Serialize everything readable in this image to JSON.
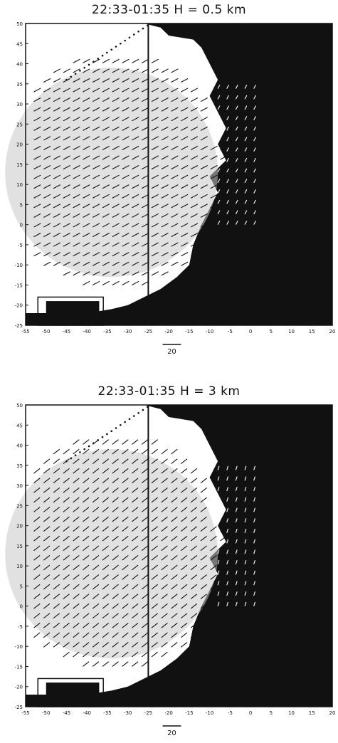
{
  "panels": [
    {
      "title": "22:33-01:35   H = 0.5 km",
      "scale_label": "20",
      "x_ticks": [
        "-55",
        "-50",
        "-45",
        "-40",
        "-35",
        "-30",
        "-25",
        "-20",
        "-15",
        "-10",
        "-5",
        "0",
        "5",
        "10",
        "15",
        "20"
      ],
      "y_ticks": [
        "50",
        "45",
        "40",
        "35",
        "30",
        "25",
        "20",
        "15",
        "10",
        "5",
        "0",
        "-5",
        "-10",
        "-15",
        "-20",
        "-25"
      ],
      "vertical_line_x": -25,
      "wind_angle_deg": 28
    },
    {
      "title": "22:33-01:35   H = 3 km",
      "scale_label": "20",
      "x_ticks": [
        "-55",
        "-50",
        "-45",
        "-40",
        "-35",
        "-30",
        "-25",
        "-20",
        "-15",
        "-10",
        "-5",
        "0",
        "5",
        "10",
        "15",
        "20"
      ],
      "y_ticks": [
        "50",
        "45",
        "40",
        "35",
        "30",
        "25",
        "20",
        "15",
        "10",
        "5",
        "0",
        "-5",
        "-10",
        "-15",
        "-20",
        "-25"
      ],
      "vertical_line_x": -25,
      "wind_angle_deg": 38
    }
  ],
  "colors": {
    "ink": "#111111",
    "background": "#ffffff",
    "shade": "#c8c8c8"
  }
}
